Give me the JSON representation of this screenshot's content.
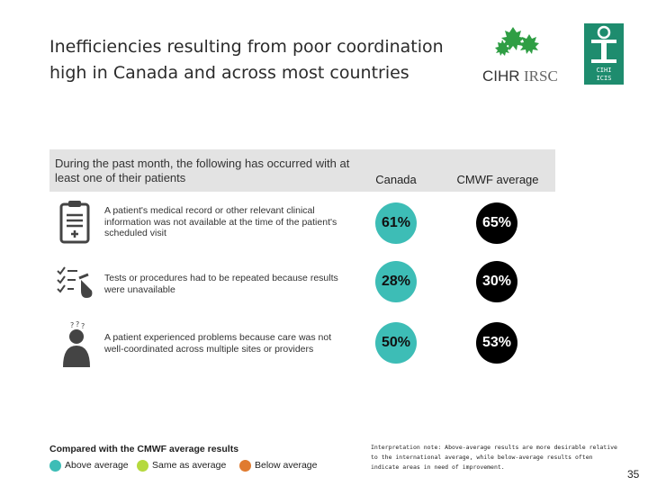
{
  "title": "Inefficiencies resulting from poor coordination high in Canada and across most countries",
  "logos": {
    "cihr_text": "CIHR IRSC",
    "cihi_text": "CIHI ICIS"
  },
  "table": {
    "header_text": "During the past month, the following has occurred with at least one of their patients",
    "col_canada": "Canada",
    "col_cmwf": "CMWF average",
    "rows": [
      {
        "icon": "clipboard-icon",
        "text": "A patient's medical record or other relevant clinical information was not available at the time of the patient's scheduled visit",
        "canada": "61%",
        "cmwf": "65%"
      },
      {
        "icon": "checklist-test-tube-icon",
        "text": "Tests or procedures had to be repeated because results were unavailable",
        "canada": "28%",
        "cmwf": "30%"
      },
      {
        "icon": "confused-person-icon",
        "text": "A patient experienced problems because care was not well-coordinated across multiple sites or providers",
        "canada": "50%",
        "cmwf": "53%"
      }
    ]
  },
  "legend": {
    "title": "Compared with the CMWF average results",
    "items": [
      {
        "label": "Above average",
        "color": "#3dbdb6"
      },
      {
        "label": "Same as average",
        "color": "#b5d93e"
      },
      {
        "label": "Below average",
        "color": "#e07b30"
      }
    ]
  },
  "note": "Interpretation note: Above-average results are more desirable relative to the international average, while below-average results often indicate areas in need of improvement.",
  "page_number": "35",
  "colors": {
    "canada_bubble": "#3dbdb6",
    "cmwf_bubble": "#000000",
    "header_band": "#e3e3e3",
    "cihi_green": "#1e8c6e"
  }
}
